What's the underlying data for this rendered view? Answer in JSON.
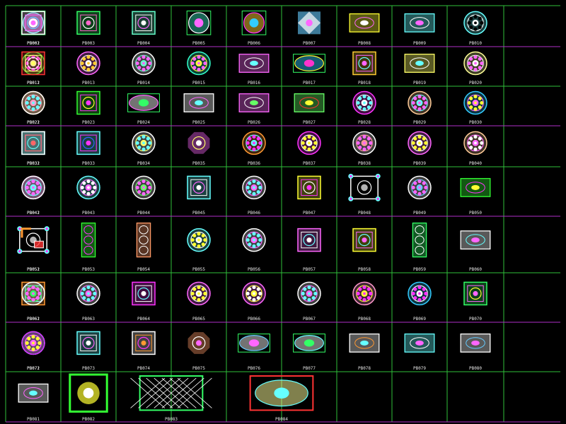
{
  "sheet": {
    "background": "#000000",
    "grid_color": "#2fbf3a",
    "row_separator_color": "#b02fc8"
  },
  "tiles": [
    {
      "label": "PB001",
      "kind": "roundsq",
      "colors": [
        "#ff66ff",
        "#66ffff",
        "#ffffff"
      ]
    },
    {
      "label": "PB002",
      "kind": "square",
      "colors": [
        "#ffffff",
        "#ff66ff",
        "#66ccff"
      ]
    },
    {
      "label": "PB003",
      "kind": "square",
      "colors": [
        "#33ff66",
        "#ff66cc",
        "#ffffff"
      ]
    },
    {
      "label": "PB004",
      "kind": "square",
      "colors": [
        "#66ffcc",
        "#ffffff",
        "#ff66ff"
      ]
    },
    {
      "label": "PB005",
      "kind": "roundsq",
      "colors": [
        "#33ccaa",
        "#ffffff",
        "#ff66ff"
      ]
    },
    {
      "label": "PB006",
      "kind": "roundsq",
      "colors": [
        "#ffcc33",
        "#ff33ff",
        "#33ccff"
      ]
    },
    {
      "label": "PB007",
      "kind": "diamond",
      "colors": [
        "#66ccff",
        "#ffffff",
        "#ff66ff"
      ]
    },
    {
      "label": "PB008",
      "kind": "rect",
      "colors": [
        "#ffff33",
        "#ff66ff",
        "#ffffff"
      ]
    },
    {
      "label": "PB009",
      "kind": "rect",
      "colors": [
        "#66ffff",
        "#ffffff",
        "#ff66ff"
      ]
    },
    {
      "label": "PB010",
      "kind": "circle",
      "colors": [
        "#66ffff",
        "#ffffff",
        "#000000"
      ]
    },
    {
      "label": "PB011",
      "kind": "circle",
      "colors": [
        "#33ff33",
        "#ffffff",
        "#ff33ff"
      ]
    },
    {
      "label": "PB012",
      "kind": "square",
      "colors": [
        "#ff3333",
        "#ffff66",
        "#ffffff"
      ]
    },
    {
      "label": "PB013",
      "kind": "circle",
      "colors": [
        "#ff66ff",
        "#ffffff",
        "#ffcc33"
      ]
    },
    {
      "label": "PB014",
      "kind": "circle",
      "colors": [
        "#ffffff",
        "#66ffcc",
        "#ff66ff"
      ]
    },
    {
      "label": "PB015",
      "kind": "circle",
      "colors": [
        "#33ffcc",
        "#ffff33",
        "#ff66ff"
      ]
    },
    {
      "label": "PB016",
      "kind": "rect",
      "colors": [
        "#ff66ff",
        "#ffffff",
        "#66ffff"
      ]
    },
    {
      "label": "PB017",
      "kind": "oval",
      "colors": [
        "#33ccff",
        "#ffff33",
        "#ff33cc"
      ]
    },
    {
      "label": "PB018",
      "kind": "square",
      "colors": [
        "#ffcc33",
        "#ff66ff",
        "#66ffff"
      ]
    },
    {
      "label": "PB019",
      "kind": "rect",
      "colors": [
        "#ffff66",
        "#ffffff",
        "#66ffff"
      ]
    },
    {
      "label": "PB020",
      "kind": "circle",
      "colors": [
        "#ffff99",
        "#ffffff",
        "#ff66ff"
      ]
    },
    {
      "label": "PB021",
      "kind": "circle",
      "colors": [
        "#ff9933",
        "#ffff33",
        "#ff33ff"
      ]
    },
    {
      "label": "PB022",
      "kind": "circle",
      "colors": [
        "#ffffff",
        "#ff99cc",
        "#66ffff"
      ]
    },
    {
      "label": "PB023",
      "kind": "square",
      "colors": [
        "#33ff33",
        "#ff33ff",
        "#ffff33"
      ]
    },
    {
      "label": "PB024",
      "kind": "oval",
      "colors": [
        "#ffffff",
        "#ff66ff",
        "#33ff66"
      ]
    },
    {
      "label": "PB025",
      "kind": "rect",
      "colors": [
        "#ffffff",
        "#ff66ff",
        "#66ffff"
      ]
    },
    {
      "label": "PB026",
      "kind": "rect",
      "colors": [
        "#ff66ff",
        "#ffffff",
        "#66ff66"
      ]
    },
    {
      "label": "PB027",
      "kind": "rect",
      "colors": [
        "#66ff66",
        "#ff3333",
        "#ffff33"
      ]
    },
    {
      "label": "PB028",
      "kind": "circle",
      "colors": [
        "#ff33ff",
        "#ffffff",
        "#66ffff"
      ]
    },
    {
      "label": "PB029",
      "kind": "circle",
      "colors": [
        "#ffcc99",
        "#66ffff",
        "#ff66ff"
      ]
    },
    {
      "label": "PB030",
      "kind": "circle",
      "colors": [
        "#33ccff",
        "#ff66ff",
        "#ffff33"
      ]
    },
    {
      "label": "PB031",
      "kind": "square",
      "colors": [
        "#33ffff",
        "#ff66ff",
        "#000000"
      ]
    },
    {
      "label": "PB032",
      "kind": "square",
      "colors": [
        "#ffffff",
        "#ff6666",
        "#66ffff"
      ]
    },
    {
      "label": "PB033",
      "kind": "square",
      "colors": [
        "#66ffff",
        "#ff33ff",
        "#3366ff"
      ]
    },
    {
      "label": "PB034",
      "kind": "circle",
      "colors": [
        "#ffffff",
        "#ffff66",
        "#66ffff"
      ]
    },
    {
      "label": "PB035",
      "kind": "octagon",
      "colors": [
        "#ff66ff",
        "#ffff66",
        "#ffffff"
      ]
    },
    {
      "label": "PB036",
      "kind": "circle",
      "colors": [
        "#ff9933",
        "#66ffff",
        "#ff33ff"
      ]
    },
    {
      "label": "PB037",
      "kind": "circle",
      "colors": [
        "#ff33ff",
        "#ffffff",
        "#ffff33"
      ]
    },
    {
      "label": "PB038",
      "kind": "circle",
      "colors": [
        "#ffffff",
        "#ff9999",
        "#ff66ff"
      ]
    },
    {
      "label": "PB039",
      "kind": "circle",
      "colors": [
        "#ff66ff",
        "#ffffff",
        "#ffff33"
      ]
    },
    {
      "label": "PB040",
      "kind": "circle",
      "colors": [
        "#ffcc99",
        "#ff66ff",
        "#ffffff"
      ]
    },
    {
      "label": "PB041",
      "kind": "circle",
      "colors": [
        "#ff66ff",
        "#ffffff",
        "#66ffff"
      ]
    },
    {
      "label": "PB042",
      "kind": "circle",
      "colors": [
        "#ffffff",
        "#66ffff",
        "#ff66ff"
      ]
    },
    {
      "label": "PB043",
      "kind": "circle",
      "colors": [
        "#66ffff",
        "#ff66ff",
        "#ffffff"
      ]
    },
    {
      "label": "PB044",
      "kind": "circle",
      "colors": [
        "#ffffff",
        "#66ff66",
        "#ff66ff"
      ]
    },
    {
      "label": "PB045",
      "kind": "square",
      "colors": [
        "#66ffff",
        "#ffffff",
        "#ff66ff"
      ]
    },
    {
      "label": "PB046",
      "kind": "circle",
      "colors": [
        "#ffffff",
        "#ff66ff",
        "#66ffff"
      ]
    },
    {
      "label": "PB047",
      "kind": "square",
      "colors": [
        "#ffff33",
        "#ff33ff",
        "#ffffff"
      ]
    },
    {
      "label": "PB048",
      "kind": "ornate",
      "colors": [
        "#ffffff",
        "#66ffff",
        "#ff33ff"
      ]
    },
    {
      "label": "PB049",
      "kind": "circle",
      "colors": [
        "#ffffff",
        "#66ccff",
        "#ff66ff"
      ]
    },
    {
      "label": "PB050",
      "kind": "rect",
      "colors": [
        "#33ff33",
        "#ff33ff",
        "#ffff33"
      ]
    },
    {
      "label": "PB051",
      "kind": "ornate",
      "colors": [
        "#ffffff",
        "#66ffff",
        "#ff33ff"
      ]
    },
    {
      "label": "PB052",
      "kind": "corner",
      "colors": [
        "#ff9933",
        "#ffffff",
        "#ff3333"
      ]
    },
    {
      "label": "PB053",
      "kind": "tall",
      "colors": [
        "#33ff33",
        "#ff33ff",
        "#ffffff"
      ]
    },
    {
      "label": "PB054",
      "kind": "tall",
      "colors": [
        "#ff9966",
        "#ffffff",
        "#66ffff"
      ]
    },
    {
      "label": "PB055",
      "kind": "circle",
      "colors": [
        "#66ffff",
        "#ffffff",
        "#ffff33"
      ]
    },
    {
      "label": "PB056",
      "kind": "circle",
      "colors": [
        "#ffffff",
        "#ff66ff",
        "#66ffff"
      ]
    },
    {
      "label": "PB057",
      "kind": "square",
      "colors": [
        "#ff66ff",
        "#ffffff",
        "#66ffff"
      ]
    },
    {
      "label": "PB058",
      "kind": "square",
      "colors": [
        "#ffff33",
        "#ff66ff",
        "#66ffff"
      ]
    },
    {
      "label": "PB059",
      "kind": "tall",
      "colors": [
        "#33ff66",
        "#ffffff",
        "#ff66ff"
      ]
    },
    {
      "label": "PB060",
      "kind": "rect",
      "colors": [
        "#ffffff",
        "#66ffff",
        "#ff66ff"
      ]
    },
    {
      "label": "PB061",
      "kind": "square",
      "colors": [
        "#ff9933",
        "#66ffff",
        "#ff33ff"
      ]
    },
    {
      "label": "PB062",
      "kind": "circle",
      "colors": [
        "#ffffff",
        "#33ff66",
        "#ff66ff"
      ]
    },
    {
      "label": "PB063",
      "kind": "circle",
      "colors": [
        "#ffffff",
        "#ff66ff",
        "#66ffff"
      ]
    },
    {
      "label": "PB064",
      "kind": "square",
      "colors": [
        "#ff33ff",
        "#ffffff",
        "#66ffff"
      ]
    },
    {
      "label": "PB065",
      "kind": "circle",
      "colors": [
        "#ff66ff",
        "#ffffff",
        "#ffff33"
      ]
    },
    {
      "label": "PB066",
      "kind": "circle",
      "colors": [
        "#ff66ff",
        "#ffff33",
        "#ffffff"
      ]
    },
    {
      "label": "PB067",
      "kind": "circle",
      "colors": [
        "#ffffff",
        "#ff66ff",
        "#66ffff"
      ]
    },
    {
      "label": "PB068",
      "kind": "circle",
      "colors": [
        "#ff99cc",
        "#ffff33",
        "#ff33ff"
      ]
    },
    {
      "label": "PB069",
      "kind": "circle",
      "colors": [
        "#33ccff",
        "#ffffff",
        "#ff33ff"
      ]
    },
    {
      "label": "PB070",
      "kind": "square",
      "colors": [
        "#33ff66",
        "#ff66ff",
        "#ffff33"
      ]
    },
    {
      "label": "PB071",
      "kind": "circle",
      "colors": [
        "#ffffff",
        "#ff66ff",
        "#66ffff"
      ]
    },
    {
      "label": "PB072",
      "kind": "circle",
      "colors": [
        "#cc33ff",
        "#ff66ff",
        "#ffff33"
      ]
    },
    {
      "label": "PB073",
      "kind": "square",
      "colors": [
        "#66ffff",
        "#ffffff",
        "#ff66ff"
      ]
    },
    {
      "label": "PB074",
      "kind": "square",
      "colors": [
        "#ffffff",
        "#ff9933",
        "#ff33ff"
      ]
    },
    {
      "label": "PB075",
      "kind": "octagon",
      "colors": [
        "#ff9966",
        "#ffffff",
        "#ff66ff"
      ]
    },
    {
      "label": "PB076",
      "kind": "oval",
      "colors": [
        "#ffffff",
        "#66ccff",
        "#ff66ff"
      ]
    },
    {
      "label": "PB077",
      "kind": "oval",
      "colors": [
        "#ffffff",
        "#66ffff",
        "#33ff66"
      ]
    },
    {
      "label": "PB078",
      "kind": "rect",
      "colors": [
        "#ffffff",
        "#ff9933",
        "#66ffff"
      ]
    },
    {
      "label": "PB079",
      "kind": "rect",
      "colors": [
        "#66ffff",
        "#ffffff",
        "#ff66ff"
      ]
    },
    {
      "label": "PB080",
      "kind": "rect",
      "colors": [
        "#ffffff",
        "#66ccff",
        "#ff66ff"
      ]
    },
    {
      "label": "PB081",
      "kind": "rect",
      "colors": [
        "#ffffff",
        "#ff66ff",
        "#66ffff"
      ]
    },
    {
      "label": "PB082",
      "kind": "big-square",
      "colors": [
        "#33ff33",
        "#ffff33",
        "#ffffff"
      ]
    },
    {
      "label": "PB083",
      "kind": "big-rect",
      "colors": [
        "#33ff66",
        "#ffffff",
        "#ff66ff"
      ]
    },
    {
      "label": "PB084",
      "kind": "big-oval",
      "colors": [
        "#ff3333",
        "#ffff99",
        "#66ffff"
      ]
    }
  ]
}
